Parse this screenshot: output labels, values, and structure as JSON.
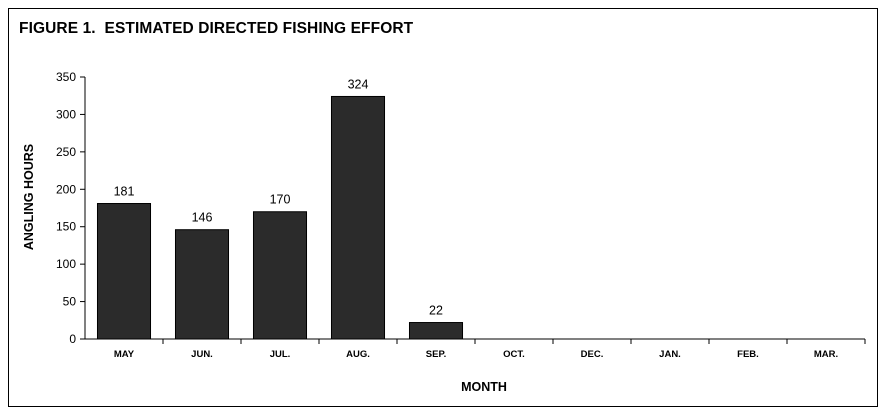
{
  "chart_data": {
    "type": "bar",
    "title": "FIGURE 1.  ESTIMATED DIRECTED FISHING EFFORT",
    "xlabel": "MONTH",
    "ylabel": "ANGLING HOURS",
    "categories": [
      "MAY",
      "JUN.",
      "JUL.",
      "AUG.",
      "SEP.",
      "OCT.",
      "DEC.",
      "JAN.",
      "FEB.",
      "MAR."
    ],
    "values": [
      181,
      146,
      170,
      324,
      22,
      0,
      0,
      0,
      0,
      0
    ],
    "data_labels": [
      "181",
      "146",
      "170",
      "324",
      "22",
      "",
      "",
      "",
      "",
      ""
    ],
    "ylim": [
      0,
      350
    ],
    "yticks": [
      0,
      50,
      100,
      150,
      200,
      250,
      300,
      350
    ],
    "grid": false,
    "legend": "none",
    "bar_color": "#2b2b2b"
  }
}
